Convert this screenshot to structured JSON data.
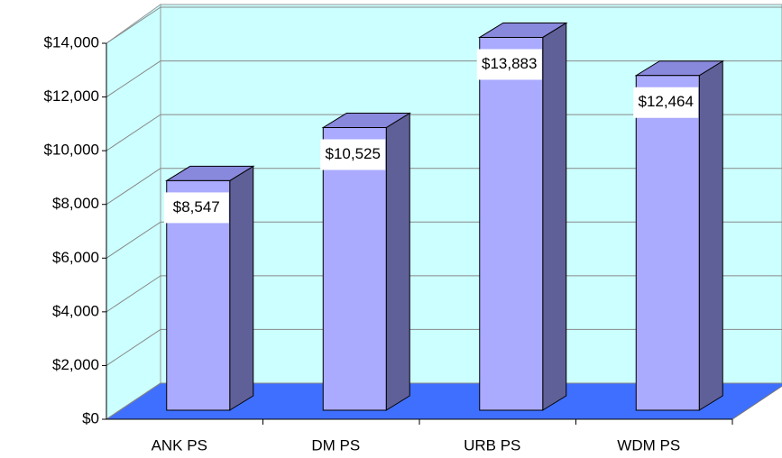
{
  "chart_data": {
    "type": "bar3d",
    "categories": [
      "ANK PS",
      "DM PS",
      "URB PS",
      "WDM PS"
    ],
    "values": [
      8547,
      10525,
      13883,
      12464
    ],
    "value_labels": [
      "$8,547",
      "$10,525",
      "$13,883",
      "$12,464"
    ],
    "color": "#aaaaff",
    "ylim": [
      0,
      14000
    ],
    "yticks": [
      {
        "value": 0,
        "label": "$0"
      },
      {
        "value": 2000,
        "label": "$2,000"
      },
      {
        "value": 4000,
        "label": "$4,000"
      },
      {
        "value": 6000,
        "label": "$6,000"
      },
      {
        "value": 8000,
        "label": "$8,000"
      },
      {
        "value": 10000,
        "label": "$10,000"
      },
      {
        "value": 12000,
        "label": "$12,000"
      },
      {
        "value": 14000,
        "label": "$14,000"
      }
    ],
    "grid": true
  }
}
